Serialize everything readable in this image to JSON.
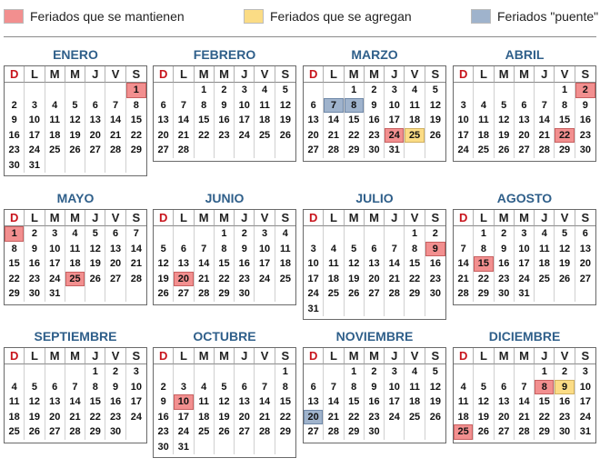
{
  "legend": [
    {
      "label": "Feriados que se mantienen",
      "color": "#f28f8f"
    },
    {
      "label": "Feriados que se agregan",
      "color": "#fbdc85"
    },
    {
      "label": "Feriados \"puente\"",
      "color": "#9fb3cc"
    }
  ],
  "weekdays": [
    "D",
    "L",
    "M",
    "M",
    "J",
    "V",
    "S"
  ],
  "months": [
    {
      "name": "ENERO",
      "start": 6,
      "days": 31,
      "marks": {
        "1": "hol"
      }
    },
    {
      "name": "FEBRERO",
      "start": 2,
      "days": 28,
      "marks": {}
    },
    {
      "name": "MARZO",
      "start": 2,
      "days": 31,
      "marks": {
        "7": "bri",
        "8": "bri",
        "24": "hol",
        "25": "add"
      }
    },
    {
      "name": "ABRIL",
      "start": 5,
      "days": 30,
      "marks": {
        "2": "hol",
        "22": "hol"
      }
    },
    {
      "name": "MAYO",
      "start": 0,
      "days": 31,
      "marks": {
        "1": "hol",
        "25": "hol"
      }
    },
    {
      "name": "JUNIO",
      "start": 3,
      "days": 30,
      "marks": {
        "20": "hol"
      }
    },
    {
      "name": "JULIO",
      "start": 5,
      "days": 31,
      "marks": {
        "9": "hol"
      }
    },
    {
      "name": "AGOSTO",
      "start": 1,
      "days": 31,
      "marks": {
        "15": "hol"
      }
    },
    {
      "name": "SEPTIEMBRE",
      "start": 4,
      "days": 30,
      "marks": {}
    },
    {
      "name": "OCTUBRE",
      "start": 6,
      "days": 31,
      "marks": {
        "10": "hol"
      }
    },
    {
      "name": "NOVIEMBRE",
      "start": 2,
      "days": 30,
      "marks": {
        "20": "bri"
      }
    },
    {
      "name": "DICIEMBRE",
      "start": 4,
      "days": 31,
      "marks": {
        "8": "hol",
        "9": "add",
        "25": "hol"
      }
    }
  ]
}
